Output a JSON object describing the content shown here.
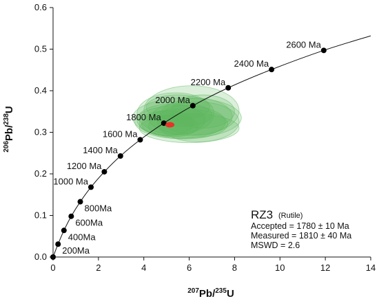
{
  "chart_data": {
    "type": "scatter",
    "title": "",
    "xlabel": {
      "pre": "207",
      "base": "Pb/",
      "sup2": "235",
      "tail": "U"
    },
    "ylabel": {
      "pre": "206",
      "base": "Pb/",
      "sup2": "238",
      "tail": "U"
    },
    "xlim": [
      0,
      14
    ],
    "ylim": [
      0,
      0.6
    ],
    "xticks": [
      0,
      2,
      4,
      6,
      8,
      10,
      12,
      14
    ],
    "xtick_labels": [
      "0",
      "2",
      "4",
      "6",
      "8",
      "10",
      "12",
      "14"
    ],
    "yticks": [
      0,
      0.1,
      0.2,
      0.3,
      0.4,
      0.5,
      0.6
    ],
    "ytick_labels": [
      "0.0",
      "0.1",
      "0.2",
      "0.3",
      "0.4",
      "0.5",
      "0.6"
    ],
    "grid": false,
    "concordia_ages_ma": [
      200,
      400,
      600,
      800,
      1000,
      1200,
      1400,
      1600,
      1800,
      2000,
      2200,
      2400,
      2600
    ],
    "concordia_labels": [
      "200Ma",
      "400Ma",
      "600Ma",
      "800Ma",
      "1000 Ma",
      "1200 Ma",
      "1400 Ma",
      "1600 Ma",
      "1800 Ma",
      "2000 Ma",
      "2200 Ma",
      "2400 Ma",
      "2600 Ma"
    ],
    "concordia_points": [
      {
        "x": 0.0,
        "y": 0.0
      },
      {
        "x": 0.22,
        "y": 0.031
      },
      {
        "x": 0.48,
        "y": 0.064
      },
      {
        "x": 0.8,
        "y": 0.098
      },
      {
        "x": 1.2,
        "y": 0.133
      },
      {
        "x": 1.67,
        "y": 0.168
      },
      {
        "x": 2.26,
        "y": 0.205
      },
      {
        "x": 2.97,
        "y": 0.243
      },
      {
        "x": 3.84,
        "y": 0.282
      },
      {
        "x": 4.88,
        "y": 0.322
      },
      {
        "x": 6.16,
        "y": 0.364
      },
      {
        "x": 7.72,
        "y": 0.407
      },
      {
        "x": 9.63,
        "y": 0.451
      },
      {
        "x": 11.93,
        "y": 0.497
      }
    ],
    "concordia_curve_end": {
      "x": 14.0,
      "y": 0.532
    },
    "ellipse_color": "#5cb85c",
    "ellipses": [
      {
        "cx": 5.9,
        "cy": 0.335,
        "rx": 2.4,
        "ry": 0.048
      },
      {
        "cx": 5.6,
        "cy": 0.325,
        "rx": 2.0,
        "ry": 0.04
      },
      {
        "cx": 6.1,
        "cy": 0.352,
        "rx": 2.1,
        "ry": 0.06
      },
      {
        "cx": 5.4,
        "cy": 0.345,
        "rx": 1.7,
        "ry": 0.05
      },
      {
        "cx": 5.8,
        "cy": 0.32,
        "rx": 1.9,
        "ry": 0.036
      },
      {
        "cx": 6.3,
        "cy": 0.338,
        "rx": 1.6,
        "ry": 0.044
      },
      {
        "cx": 5.2,
        "cy": 0.33,
        "rx": 1.5,
        "ry": 0.038
      },
      {
        "cx": 6.0,
        "cy": 0.31,
        "rx": 2.2,
        "ry": 0.035
      },
      {
        "cx": 5.5,
        "cy": 0.36,
        "rx": 1.4,
        "ry": 0.03
      },
      {
        "cx": 6.4,
        "cy": 0.325,
        "rx": 1.8,
        "ry": 0.048
      },
      {
        "cx": 5.0,
        "cy": 0.322,
        "rx": 1.2,
        "ry": 0.03
      },
      {
        "cx": 5.7,
        "cy": 0.342,
        "rx": 1.3,
        "ry": 0.028
      },
      {
        "cx": 6.6,
        "cy": 0.35,
        "rx": 1.4,
        "ry": 0.04
      },
      {
        "cx": 5.3,
        "cy": 0.315,
        "rx": 1.1,
        "ry": 0.026
      }
    ],
    "measured_point": {
      "x": 5.15,
      "y": 0.318,
      "rx": 0.2,
      "ry": 0.0065,
      "color": "#e8322a"
    },
    "annotation": {
      "sample": "RZ3",
      "mineral": "(Rutile)",
      "accepted": "Accepted = 1780 ± 10 Ma",
      "measured": "Measured = 1810 ± 40 Ma",
      "mswd": "MSWD = 2.6"
    }
  }
}
